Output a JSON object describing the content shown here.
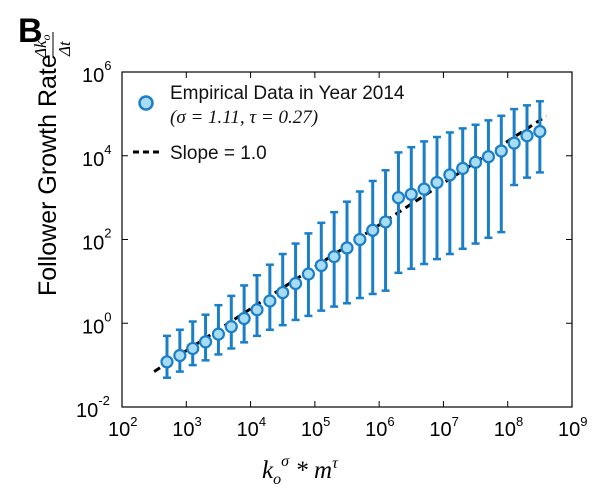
{
  "chart_data": {
    "type": "scatter",
    "panel_label": "B",
    "title": "",
    "ylabel": "Follower Growth Rate",
    "ylabel_fraction": {
      "numerator": "Δk",
      "numerator_sub": "o",
      "denominator": "Δt"
    },
    "xlabel": {
      "base": "k",
      "base_sub": "o",
      "base_sup": "σ",
      "operator": " * ",
      "term": "m",
      "term_sup": "τ"
    },
    "x_scale": "log",
    "y_scale": "log",
    "xlim": [
      100,
      1000000000
    ],
    "ylim": [
      0.01,
      1000000
    ],
    "x_ticks": [
      {
        "base": "10",
        "exp": "2",
        "value": 100
      },
      {
        "base": "10",
        "exp": "3",
        "value": 1000
      },
      {
        "base": "10",
        "exp": "4",
        "value": 10000
      },
      {
        "base": "10",
        "exp": "5",
        "value": 100000
      },
      {
        "base": "10",
        "exp": "6",
        "value": 1000000
      },
      {
        "base": "10",
        "exp": "7",
        "value": 10000000
      },
      {
        "base": "10",
        "exp": "8",
        "value": 100000000
      },
      {
        "base": "10",
        "exp": "9",
        "value": 1000000000
      }
    ],
    "y_ticks": [
      {
        "base": "10",
        "exp": "-2",
        "value": 0.01
      },
      {
        "base": "10",
        "exp": "0",
        "value": 1
      },
      {
        "base": "10",
        "exp": "2",
        "value": 100
      },
      {
        "base": "10",
        "exp": "4",
        "value": 10000
      },
      {
        "base": "10",
        "exp": "6",
        "value": 1000000
      }
    ],
    "grid": false,
    "legend_position": "top-left",
    "colors": {
      "marker_fill": "#a8dcf4",
      "marker_edge": "#1a7fc8",
      "error_bar": "#1a7fc8",
      "fit_line": "#000000"
    },
    "series": [
      {
        "name": "Empirical Data in Year 2014",
        "name_params": "(σ = 1.11, τ = 0.27)",
        "x": [
          501,
          794,
          1259,
          1995,
          3162,
          5012,
          7943,
          12589,
          19953,
          31623,
          50119,
          79433,
          125893,
          199526,
          316228,
          501187,
          794328,
          1258925,
          1995262,
          3162278,
          5011872,
          7943282,
          12589254,
          19952623,
          31622777,
          50118723,
          79432823,
          125892541,
          199526231,
          316227766
        ],
        "y": [
          0.12,
          0.17,
          0.25,
          0.36,
          0.55,
          0.83,
          1.3,
          2.1,
          3.4,
          5.4,
          8.9,
          15,
          24,
          39,
          63,
          100,
          166,
          263,
          1000,
          1200,
          1600,
          2300,
          3500,
          5000,
          7000,
          9500,
          13000,
          20000,
          30000,
          38000
        ],
        "y_lower": [
          0.05,
          0.07,
          0.1,
          0.13,
          0.18,
          0.25,
          0.35,
          0.5,
          0.7,
          0.9,
          1.2,
          1.5,
          2,
          2.5,
          3,
          4,
          5,
          6,
          16,
          20,
          26,
          34,
          45,
          60,
          80,
          110,
          150,
          2000,
          3000,
          4000
        ],
        "y_upper": [
          0.5,
          0.7,
          1.1,
          1.6,
          2.7,
          4.5,
          8,
          14,
          25,
          45,
          80,
          140,
          250,
          450,
          800,
          1400,
          2500,
          4500,
          12000,
          16000,
          22000,
          28000,
          36000,
          45000,
          55000,
          70000,
          90000,
          130000,
          160000,
          200000
        ]
      },
      {
        "name": "Slope = 1.0",
        "type": "line",
        "x": [
          316,
          400000000
        ],
        "y": [
          0.07,
          89000
        ]
      }
    ]
  }
}
